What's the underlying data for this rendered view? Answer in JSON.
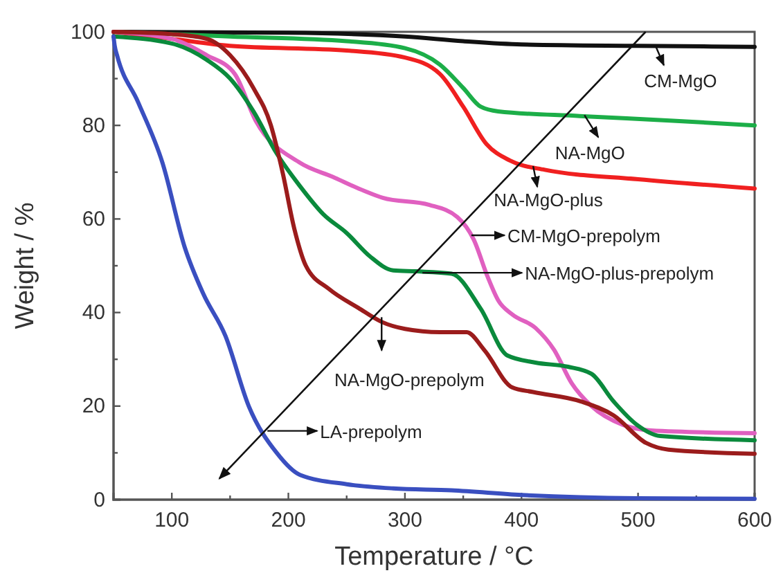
{
  "chart_data": {
    "type": "line",
    "xlabel": "Temperature / °C",
    "ylabel": "Weight  / %",
    "xlim": [
      50,
      600
    ],
    "ylim": [
      0,
      100
    ],
    "xticks": [
      {
        "value": 50,
        "label": null
      },
      100,
      {
        "value": 150,
        "label": null
      },
      200,
      {
        "value": 250,
        "label": null
      },
      300,
      {
        "value": 350,
        "label": null
      },
      400,
      {
        "value": 450,
        "label": null
      },
      500,
      {
        "value": 550,
        "label": null
      },
      600
    ],
    "yticks": [
      0,
      {
        "value": 10,
        "label": null
      },
      20,
      {
        "value": 30,
        "label": null
      },
      40,
      {
        "value": 50,
        "label": null
      },
      60,
      {
        "value": 70,
        "label": null
      },
      80,
      {
        "value": 90,
        "label": null
      },
      100
    ],
    "grid": false,
    "marker": "none",
    "line_style": "solid",
    "series": [
      {
        "color": "#111111",
        "x": [
          50,
          200,
          300,
          350,
          400,
          500,
          600
        ],
        "values": [
          100,
          99.8,
          99,
          98,
          97.3,
          97,
          96.8
        ]
      },
      {
        "color": "#1cae48",
        "x": [
          50,
          150,
          250,
          300,
          330,
          350,
          365,
          380,
          450,
          530,
          600
        ],
        "values": [
          100,
          99,
          98,
          96.5,
          93,
          88,
          84,
          83,
          82,
          81,
          80
        ]
      },
      {
        "color": "#f02020",
        "x": [
          50,
          100,
          150,
          250,
          300,
          330,
          350,
          370,
          390,
          420,
          500,
          600
        ],
        "values": [
          100,
          98.5,
          97,
          96,
          94.5,
          91,
          84,
          76,
          72.5,
          70.5,
          68.5,
          66.5
        ]
      },
      {
        "color": "#e060c0",
        "x": [
          50,
          100,
          130,
          154,
          172,
          210,
          238,
          265,
          281,
          321,
          345,
          359,
          371,
          380,
          392,
          412,
          428,
          443,
          460,
          487,
          511,
          600
        ],
        "values": [
          100,
          98.5,
          95,
          91,
          81,
          72,
          69,
          66,
          64.5,
          63,
          60.4,
          55.6,
          47.6,
          42.6,
          39.6,
          36.7,
          32,
          24.9,
          20,
          16,
          14.8,
          14.2
        ]
      },
      {
        "color": "#0a8a3c",
        "x": [
          50,
          100,
          130,
          150,
          170,
          190,
          210,
          230,
          250,
          270,
          290,
          310,
          340,
          365,
          388,
          412,
          440,
          460,
          479,
          499,
          519,
          600
        ],
        "values": [
          99,
          97.5,
          94,
          90,
          83,
          74,
          67,
          61,
          57,
          52,
          49,
          48.8,
          48.3,
          40.8,
          30.8,
          29.3,
          28.4,
          26.9,
          21,
          16,
          13.6,
          12.7
        ]
      },
      {
        "color": "#9b1c1c",
        "x": [
          50,
          100,
          130,
          150,
          170,
          185,
          195,
          205,
          215,
          235,
          260,
          280,
          300,
          330,
          353,
          368,
          392,
          410,
          451,
          479,
          507,
          526,
          600
        ],
        "values": [
          100,
          99.5,
          98.5,
          95,
          88,
          80,
          70,
          58,
          50,
          45,
          41,
          38,
          36.5,
          35.8,
          35.8,
          32,
          24,
          23,
          21,
          18,
          12.1,
          10.7,
          9.8
        ]
      },
      {
        "color": "#3a4fc0",
        "x": [
          50,
          51,
          53,
          71,
          92,
          111,
          127,
          146,
          166,
          190,
          210,
          250,
          290,
          340,
          400,
          500,
          600
        ],
        "values": [
          99,
          97,
          95,
          85,
          72,
          54,
          44,
          35,
          20,
          10,
          5.3,
          3.3,
          2.4,
          2,
          1,
          0.3,
          0.2
        ]
      }
    ],
    "annotations": [
      {
        "text": "CM-MgO",
        "x": 515,
        "y": 97
      },
      {
        "text": "NA-MgO",
        "x": 454,
        "y": 82.2
      },
      {
        "text": "NA-MgO-plus",
        "x": 410,
        "y": 71.3
      },
      {
        "text": "CM-MgO-prepolym",
        "x": 357,
        "y": 56.5
      },
      {
        "text": "NA-MgO-plus-prepolym",
        "x": 315,
        "y": 48.5
      },
      {
        "text": "NA-MgO-prepolym",
        "x": 280,
        "y": 39
      },
      {
        "text": "LA-prepolym",
        "x": 182,
        "y": 14.7
      }
    ]
  }
}
